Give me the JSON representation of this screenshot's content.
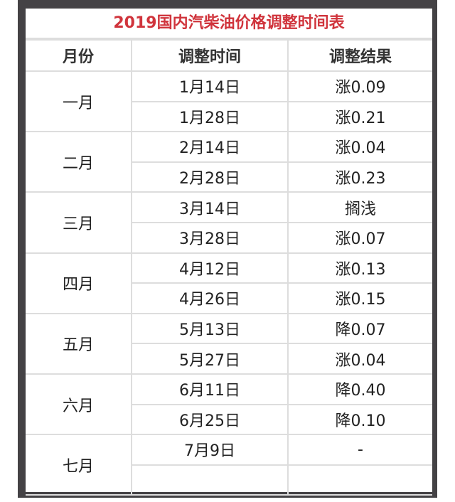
{
  "title": "2019国内汽柴油价格调整时间表",
  "headers": [
    "月份",
    "调整时间",
    "调整结果"
  ],
  "months": [
    {
      "month": "一月",
      "rows": [
        {
          "date": "1月14日",
          "result": "涨0.09"
        },
        {
          "date": "1月28日",
          "result": "涨0.21"
        }
      ]
    },
    {
      "month": "二月",
      "rows": [
        {
          "date": "2月14日",
          "result": "涨0.04"
        },
        {
          "date": "2月28日",
          "result": "涨0.23"
        }
      ]
    },
    {
      "month": "三月",
      "rows": [
        {
          "date": "3月14日",
          "result": "搁浅"
        },
        {
          "date": "3月28日",
          "result": "涨0.07"
        }
      ]
    },
    {
      "month": "四月",
      "rows": [
        {
          "date": "4月12日",
          "result": "涨0.13"
        },
        {
          "date": "4月26日",
          "result": "涨0.15"
        }
      ]
    },
    {
      "month": "五月",
      "rows": [
        {
          "date": "5月13日",
          "result": "降0.07"
        },
        {
          "date": "5月27日",
          "result": "涨0.04"
        }
      ]
    },
    {
      "month": "六月",
      "rows": [
        {
          "date": "6月11日",
          "result": "降0.40"
        },
        {
          "date": "6月25日",
          "result": "降0.10"
        }
      ]
    },
    {
      "month": "七月",
      "rows": [
        {
          "date": "7月9日",
          "result": "-"
        },
        {
          "date": "",
          "result": ""
        }
      ]
    }
  ]
}
